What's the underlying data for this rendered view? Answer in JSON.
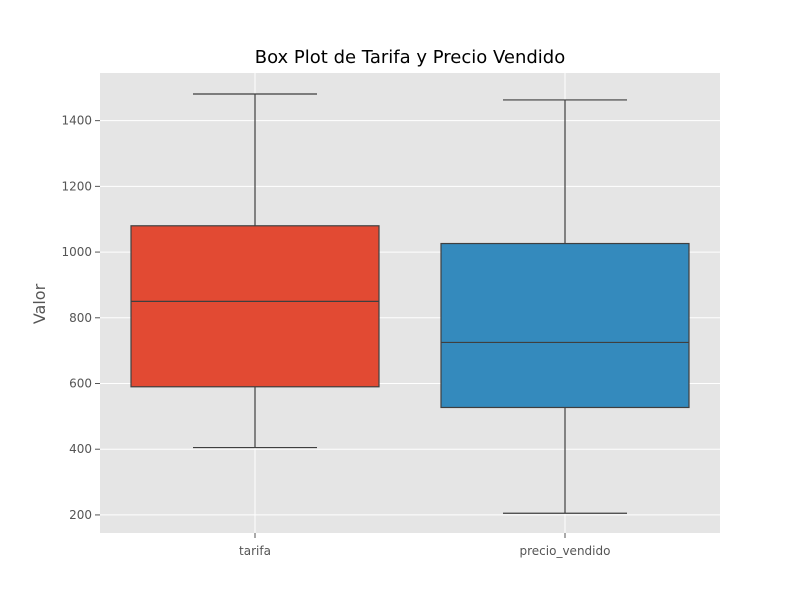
{
  "chart_data": {
    "type": "box",
    "title": "Box Plot de Tarifa y Precio Vendido",
    "xlabel": "",
    "ylabel": "Valor",
    "ylim": [
      145,
      1545
    ],
    "yticks": [
      200,
      400,
      600,
      800,
      1000,
      1200,
      1400
    ],
    "grid": true,
    "categories": [
      "tarifa",
      "precio_vendido"
    ],
    "boxes": [
      {
        "category": "tarifa",
        "whisker_low": 405,
        "q1": 590,
        "median": 850,
        "q3": 1080,
        "whisker_high": 1481,
        "color": "#E24A33"
      },
      {
        "category": "precio_vendido",
        "whisker_low": 205,
        "q1": 527,
        "median": 725,
        "q3": 1026,
        "whisker_high": 1463,
        "color": "#348ABD"
      }
    ]
  },
  "colors": {
    "plot_background": "#E5E5E5",
    "grid": "#FFFFFF",
    "box_edge": "#3F3F3F"
  }
}
